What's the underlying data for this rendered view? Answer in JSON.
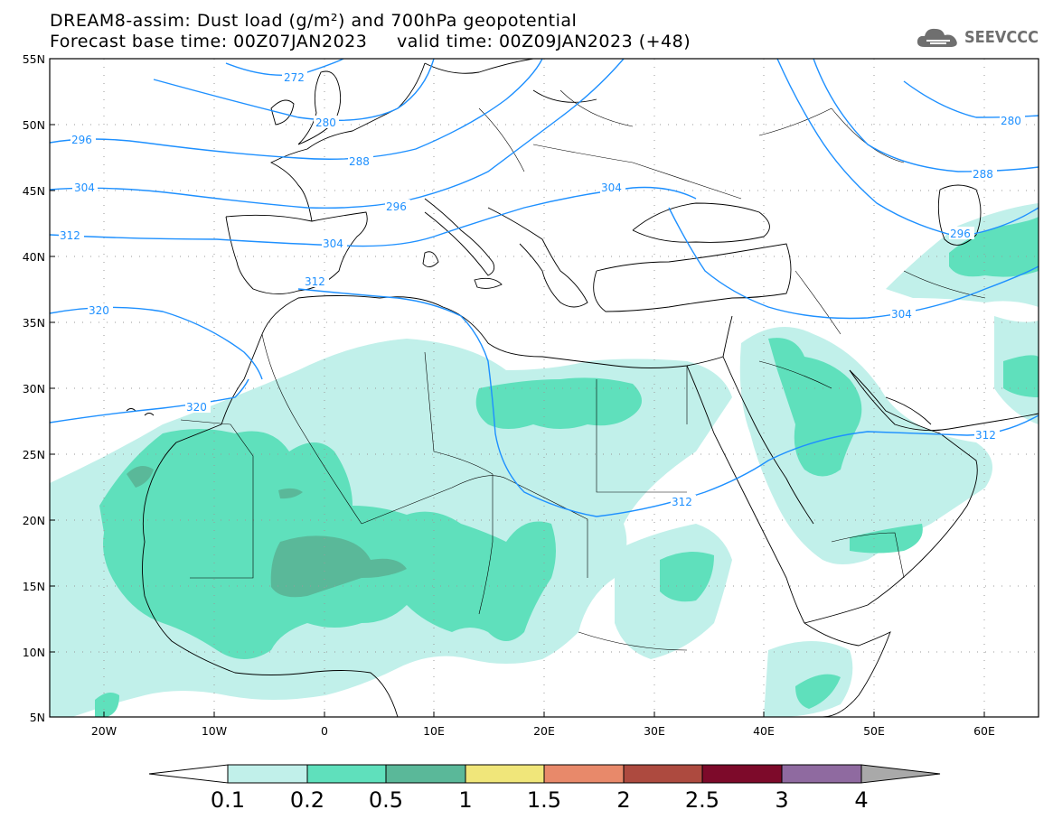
{
  "title": {
    "line1": "DREAM8-assim: Dust load (g/m²) and 700hPa geopotential",
    "line2": "Forecast base time: 00Z07JAN2023     valid time: 00Z09JAN2023 (+48)"
  },
  "logo": {
    "text": "SEEVCCC",
    "icon": "cloud-icon"
  },
  "axes": {
    "lat_labels": [
      "55N",
      "50N",
      "45N",
      "40N",
      "35N",
      "30N",
      "25N",
      "20N",
      "15N",
      "10N",
      "5N"
    ],
    "lon_labels": [
      "20W",
      "10W",
      "0",
      "10E",
      "20E",
      "30E",
      "40E",
      "50E",
      "60E"
    ]
  },
  "contours": {
    "color": "#1e90ff",
    "labels": [
      "272",
      "280",
      "296",
      "288",
      "304",
      "296",
      "312",
      "304",
      "312",
      "320",
      "320",
      "304",
      "312",
      "280",
      "288",
      "296",
      "304",
      "312"
    ]
  },
  "colorbar": {
    "labels": [
      "0.1",
      "0.2",
      "0.5",
      "1",
      "1.5",
      "2",
      "2.5",
      "3",
      "4"
    ],
    "colors": [
      "#c1f0ea",
      "#5fe0bc",
      "#5ab899",
      "#f0e67a",
      "#e8896a",
      "#ad4a3f",
      "#7d0a2a",
      "#8f6aa0"
    ],
    "over_color": "#a9a9a9"
  },
  "dust_colors": {
    "light": "#c1f0ea",
    "medium": "#5fe0bc",
    "dark": "#5ab899"
  }
}
